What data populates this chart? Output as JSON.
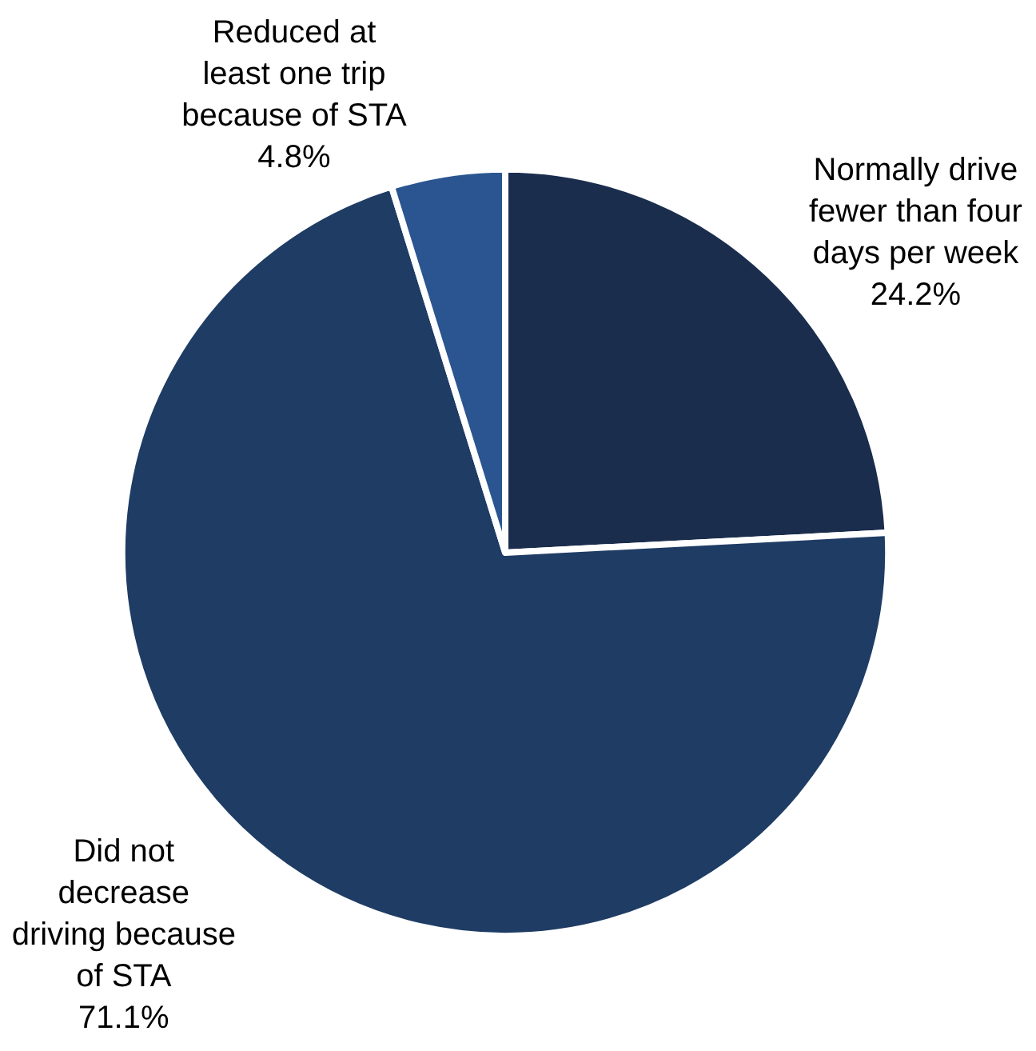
{
  "chart_data": {
    "type": "pie",
    "categories": [
      "Normally drive fewer than four days per week",
      "Did not decrease driving because of STA",
      "Reduced at least one trip because of STA"
    ],
    "values": [
      24.2,
      71.1,
      4.8
    ],
    "colors": [
      "#1a2d4d",
      "#1e3c64",
      "#2a5591"
    ],
    "value_labels": [
      "24.2%",
      "71.1%",
      "4.8%"
    ]
  }
}
